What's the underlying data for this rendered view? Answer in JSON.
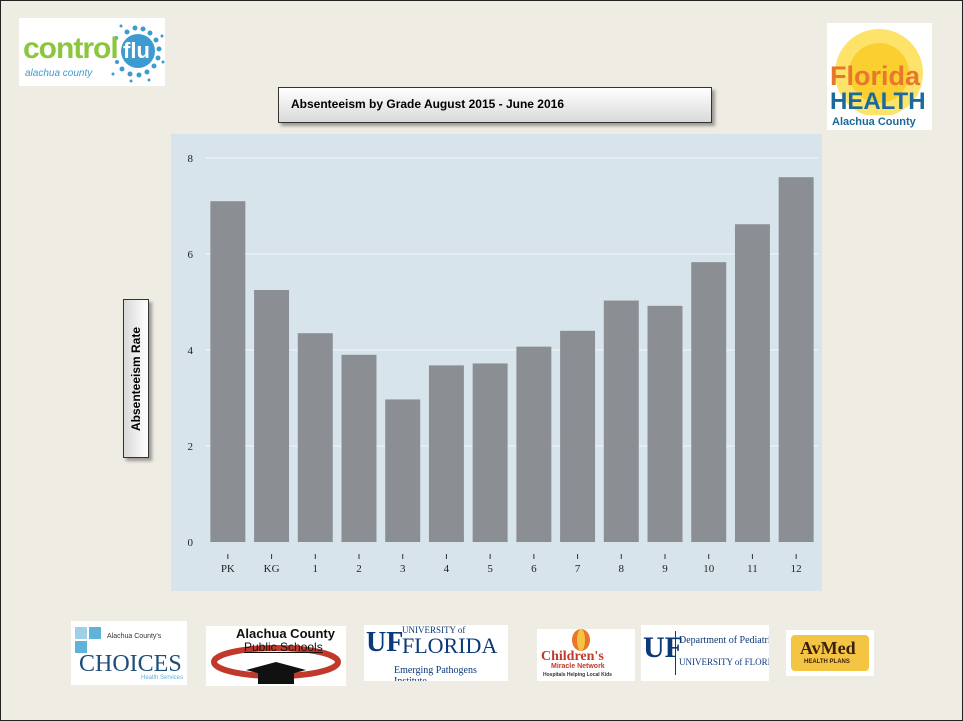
{
  "logos": {
    "control_flu": {
      "word1": "control",
      "word2": "flu",
      "sub": "alachua county"
    },
    "florida_health": {
      "line1": "Florida",
      "line2": "HEALTH",
      "line3": "Alachua County"
    },
    "choices": {
      "small": "Alachua County's",
      "big": "CHOICES",
      "sub": "Health Services"
    },
    "acps": {
      "line1": "Alachua County",
      "line2": "Public Schools"
    },
    "uf_epi": {
      "uf": "UF",
      "univ": "UNIVERSITY of",
      "florida": "FLORIDA",
      "sub": "Emerging Pathogens Institute"
    },
    "cmn": {
      "line1": "Children's",
      "line2": "Miracle Network",
      "sub": "Hospitals Helping Local Kids"
    },
    "uf_peds": {
      "uf": "UF",
      "line1": "Department of Pediatrics",
      "line2": "UNIVERSITY of FLORIDA"
    },
    "avmed": {
      "name": "AvMed",
      "sub": "HEALTH PLANS"
    }
  },
  "chart_data": {
    "type": "bar",
    "title": "Absenteeism by Grade August 2015 - June 2016",
    "xlabel": "",
    "ylabel": "Absenteeism Rate",
    "categories": [
      "PK",
      "KG",
      "1",
      "2",
      "3",
      "4",
      "5",
      "6",
      "7",
      "8",
      "9",
      "10",
      "11",
      "12"
    ],
    "values": [
      7.1,
      5.25,
      4.35,
      3.9,
      2.97,
      3.68,
      3.72,
      4.07,
      4.4,
      5.03,
      4.92,
      5.83,
      6.62,
      7.6
    ],
    "ylim": [
      0,
      8.5
    ],
    "yticks": [
      0,
      2,
      4,
      6,
      8
    ],
    "grid": true,
    "colors": {
      "bar": "#8b8f94",
      "plot_bg": "#d8e4eb",
      "grid": "#f2f6f8"
    }
  }
}
